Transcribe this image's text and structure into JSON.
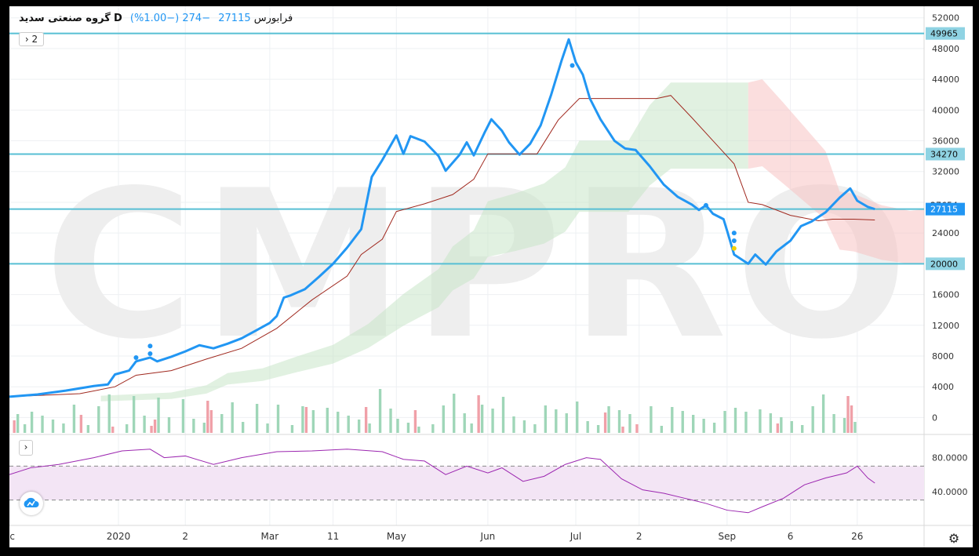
{
  "header": {
    "symbol": "گروه صنعتی سدید",
    "interval": "D",
    "exchange": "فرابورس",
    "last": "27115",
    "change": "−274 (−1.00%)",
    "indicator_count": "2"
  },
  "watermark": "CMPRO",
  "colors": {
    "price_line": "#2196f3",
    "base_line": "#a0291f",
    "level_line": "#57bfd4",
    "cloud_bull": "#c9e6c9",
    "cloud_bear": "#f8c3c3",
    "vol_up": "#9fd6b8",
    "vol_down": "#f0a0a8",
    "rsi_line": "#9c27b0",
    "rsi_band": "#f3e5f5"
  },
  "chart_data": [
    {
      "type": "line",
      "title": "",
      "y_ticks": [
        0,
        4000,
        8000,
        12000,
        16000,
        20000,
        24000,
        28000,
        32000,
        36000,
        40000,
        44000,
        48000,
        52000
      ],
      "ylim": [
        -2000,
        53500
      ],
      "x_tick_labels": [
        {
          "label": "ec",
          "i": 0
        },
        {
          "label": "2020",
          "i": 31
        },
        {
          "label": "2",
          "i": 50
        },
        {
          "label": "Mar",
          "i": 74
        },
        {
          "label": "11",
          "i": 92
        },
        {
          "label": "May",
          "i": 110
        },
        {
          "label": "Jun",
          "i": 136
        },
        {
          "label": "Jul",
          "i": 161
        },
        {
          "label": "2",
          "i": 179
        },
        {
          "label": "Sep",
          "i": 204
        },
        {
          "label": "6",
          "i": 222
        },
        {
          "label": "26",
          "i": 241
        }
      ],
      "x_total": 260,
      "horizontal_levels": [
        49965,
        34270,
        27115,
        20000
      ],
      "price_labels": [
        {
          "value": 49965,
          "text": "49965",
          "style": "level"
        },
        {
          "value": 34270,
          "text": "34270",
          "style": "level"
        },
        {
          "value": 27654,
          "text": "27654",
          "style": "plain"
        },
        {
          "value": 27115,
          "text": "27115",
          "style": "last"
        },
        {
          "value": 20000,
          "text": "20000",
          "style": "level"
        }
      ],
      "series": [
        {
          "role": "close",
          "points": [
            [
              0,
              2700
            ],
            [
              8,
              3000
            ],
            [
              16,
              3500
            ],
            [
              24,
              4100
            ],
            [
              28,
              4300
            ],
            [
              30,
              5600
            ],
            [
              34,
              6100
            ],
            [
              36,
              7300
            ],
            [
              40,
              7800
            ],
            [
              42,
              7300
            ],
            [
              46,
              7900
            ],
            [
              50,
              8600
            ],
            [
              54,
              9400
            ],
            [
              58,
              9000
            ],
            [
              62,
              9600
            ],
            [
              66,
              10300
            ],
            [
              70,
              11300
            ],
            [
              74,
              12300
            ],
            [
              76,
              13200
            ],
            [
              78,
              15600
            ],
            [
              80,
              15900
            ],
            [
              84,
              16700
            ],
            [
              88,
              18300
            ],
            [
              92,
              20000
            ],
            [
              96,
              22100
            ],
            [
              100,
              24500
            ],
            [
              103,
              31300
            ],
            [
              106,
              33500
            ],
            [
              110,
              36700
            ],
            [
              112,
              34300
            ],
            [
              114,
              36600
            ],
            [
              118,
              35900
            ],
            [
              122,
              34000
            ],
            [
              124,
              32100
            ],
            [
              128,
              34200
            ],
            [
              130,
              35800
            ],
            [
              132,
              34100
            ],
            [
              135,
              37000
            ],
            [
              137,
              38800
            ],
            [
              140,
              37300
            ],
            [
              142,
              35800
            ],
            [
              145,
              34200
            ],
            [
              148,
              35600
            ],
            [
              151,
              38000
            ],
            [
              154,
              42000
            ],
            [
              157,
              46500
            ],
            [
              159,
              49200
            ],
            [
              161,
              46200
            ],
            [
              163,
              44600
            ],
            [
              165,
              41500
            ],
            [
              168,
              38800
            ],
            [
              172,
              36000
            ],
            [
              175,
              35000
            ],
            [
              178,
              34800
            ],
            [
              182,
              32700
            ],
            [
              186,
              30300
            ],
            [
              190,
              28700
            ],
            [
              194,
              27700
            ],
            [
              196,
              27000
            ],
            [
              198,
              27600
            ],
            [
              200,
              26500
            ],
            [
              203,
              25800
            ],
            [
              204,
              24300
            ],
            [
              206,
              21200
            ],
            [
              208,
              20600
            ],
            [
              210,
              20000
            ],
            [
              212,
              21200
            ],
            [
              215,
              19900
            ],
            [
              218,
              21600
            ],
            [
              222,
              23000
            ],
            [
              225,
              24900
            ],
            [
              228,
              25500
            ],
            [
              232,
              26700
            ],
            [
              236,
              28600
            ],
            [
              239,
              29800
            ],
            [
              241,
              28200
            ],
            [
              244,
              27400
            ],
            [
              246,
              27115
            ]
          ]
        },
        {
          "role": "kijun",
          "points": [
            [
              0,
              2700
            ],
            [
              20,
              3100
            ],
            [
              30,
              4000
            ],
            [
              36,
              5500
            ],
            [
              46,
              6100
            ],
            [
              56,
              7600
            ],
            [
              66,
              9000
            ],
            [
              76,
              11600
            ],
            [
              86,
              15300
            ],
            [
              96,
              18400
            ],
            [
              100,
              21200
            ],
            [
              106,
              23200
            ],
            [
              110,
              26800
            ],
            [
              118,
              27800
            ],
            [
              126,
              29000
            ],
            [
              132,
              31000
            ],
            [
              136,
              34300
            ],
            [
              150,
              34300
            ],
            [
              156,
              38700
            ],
            [
              162,
              41500
            ],
            [
              176,
              41500
            ],
            [
              184,
              41500
            ],
            [
              188,
              41900
            ],
            [
              194,
              39000
            ],
            [
              200,
              36000
            ],
            [
              206,
              33000
            ],
            [
              210,
              28000
            ],
            [
              214,
              27700
            ],
            [
              222,
              26300
            ],
            [
              230,
              25600
            ],
            [
              234,
              25800
            ],
            [
              240,
              25800
            ],
            [
              246,
              25700
            ]
          ]
        },
        {
          "role": "rsi",
          "ylim": [
            0,
            100
          ],
          "ticks": [
            40,
            80
          ],
          "bands": [
            30,
            70
          ],
          "points": [
            [
              0,
              60
            ],
            [
              6,
              68
            ],
            [
              14,
              72
            ],
            [
              24,
              80
            ],
            [
              32,
              88
            ],
            [
              40,
              90
            ],
            [
              44,
              80
            ],
            [
              50,
              82
            ],
            [
              58,
              72
            ],
            [
              66,
              80
            ],
            [
              76,
              87
            ],
            [
              86,
              88
            ],
            [
              96,
              90
            ],
            [
              106,
              87
            ],
            [
              112,
              78
            ],
            [
              118,
              76
            ],
            [
              124,
              60
            ],
            [
              130,
              70
            ],
            [
              136,
              62
            ],
            [
              140,
              68
            ],
            [
              146,
              52
            ],
            [
              152,
              58
            ],
            [
              158,
              72
            ],
            [
              164,
              80
            ],
            [
              168,
              78
            ],
            [
              174,
              55
            ],
            [
              180,
              42
            ],
            [
              186,
              38
            ],
            [
              192,
              32
            ],
            [
              198,
              26
            ],
            [
              204,
              18
            ],
            [
              210,
              15
            ],
            [
              214,
              22
            ],
            [
              220,
              32
            ],
            [
              226,
              48
            ],
            [
              232,
              56
            ],
            [
              238,
              62
            ],
            [
              241,
              70
            ],
            [
              244,
              56
            ],
            [
              246,
              50
            ]
          ]
        },
        {
          "role": "volume",
          "up_indices": [
            2,
            4,
            6,
            9,
            12,
            15,
            18,
            22,
            25,
            28,
            33,
            35,
            38,
            42,
            45,
            49,
            52,
            55,
            60,
            63,
            66,
            70,
            73,
            76,
            80,
            83,
            86,
            90,
            93,
            96,
            99,
            102,
            105,
            108,
            110,
            113,
            116,
            120,
            123,
            126,
            129,
            131,
            134,
            137,
            140,
            143,
            146,
            149,
            152,
            155,
            158,
            161,
            164,
            167,
            170,
            173,
            176,
            182,
            185,
            188,
            191,
            194,
            197,
            200,
            203,
            206,
            209,
            213,
            216,
            219,
            222,
            225,
            228,
            231,
            234,
            237,
            240
          ],
          "down_indices": [
            1,
            20,
            29,
            40,
            41,
            56,
            57,
            84,
            101,
            115,
            133,
            169,
            174,
            178,
            218,
            238,
            239
          ]
        }
      ]
    }
  ]
}
